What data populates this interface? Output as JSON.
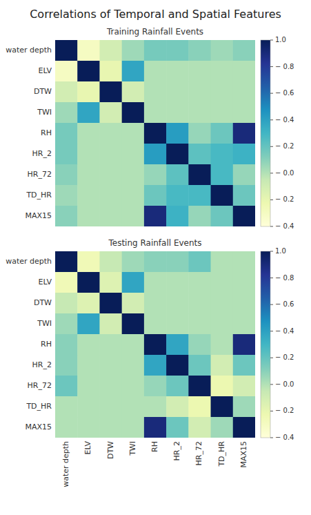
{
  "title": "Correlations of Temporal and Spatial Features",
  "chart_data": [
    {
      "type": "heatmap",
      "title": "Training Rainfall Events",
      "categories": [
        "water depth",
        "ELV",
        "DTW",
        "TWI",
        "RH",
        "HR_2",
        "HR_72",
        "TD_HR",
        "MAX15"
      ],
      "tick_labels": "y",
      "color": "YlGnBu",
      "values": [
        [
          1.0,
          -0.3,
          -0.1,
          0.05,
          0.15,
          0.15,
          0.1,
          0.05,
          0.1
        ],
        [
          -0.3,
          1.0,
          -0.2,
          0.38,
          0.0,
          0.0,
          0.0,
          0.0,
          0.0
        ],
        [
          -0.1,
          -0.2,
          1.0,
          -0.1,
          0.0,
          0.0,
          0.0,
          0.0,
          0.0
        ],
        [
          0.05,
          0.38,
          -0.1,
          1.0,
          0.0,
          0.0,
          0.0,
          0.0,
          0.0
        ],
        [
          0.15,
          0.0,
          0.0,
          0.0,
          1.0,
          0.42,
          0.07,
          0.18,
          0.9
        ],
        [
          0.15,
          0.0,
          0.0,
          0.0,
          0.42,
          1.0,
          0.22,
          0.28,
          0.32
        ],
        [
          0.1,
          0.0,
          0.0,
          0.0,
          0.07,
          0.22,
          1.0,
          0.28,
          0.07
        ],
        [
          0.05,
          0.0,
          0.0,
          0.0,
          0.18,
          0.28,
          0.28,
          1.0,
          0.18
        ],
        [
          0.1,
          0.0,
          0.0,
          0.0,
          0.9,
          0.32,
          0.07,
          0.18,
          1.0
        ]
      ],
      "color_range": [
        -0.4,
        1.0
      ],
      "color_ticks": [
        {
          "value": 1.0,
          "label": "1.0"
        },
        {
          "value": 0.8,
          "label": "− 0.8"
        },
        {
          "value": 0.6,
          "label": "− 0.6"
        },
        {
          "value": 0.4,
          "label": "− 0.4"
        },
        {
          "value": 0.2,
          "label": "− 0.2"
        },
        {
          "value": 0.0,
          "label": "− 0.0"
        },
        {
          "value": -0.2,
          "label": "− 0.2"
        },
        {
          "value": -0.4,
          "label": "− 0.4"
        }
      ]
    },
    {
      "type": "heatmap",
      "title": "Testing Rainfall Events",
      "categories": [
        "water depth",
        "ELV",
        "DTW",
        "TWI",
        "RH",
        "HR_2",
        "HR_72",
        "TD_HR",
        "MAX15"
      ],
      "color": "YlGnBu",
      "values": [
        [
          1.0,
          -0.25,
          -0.05,
          0.05,
          0.1,
          0.1,
          0.18,
          0.0,
          0.0
        ],
        [
          -0.25,
          1.0,
          -0.15,
          0.38,
          0.0,
          0.0,
          0.0,
          0.0,
          0.0
        ],
        [
          -0.05,
          -0.15,
          1.0,
          -0.1,
          0.0,
          0.0,
          0.0,
          0.0,
          0.0
        ],
        [
          0.05,
          0.38,
          -0.1,
          1.0,
          0.0,
          0.0,
          0.0,
          0.0,
          0.0
        ],
        [
          0.1,
          0.0,
          0.0,
          0.0,
          1.0,
          0.38,
          0.07,
          0.0,
          0.9
        ],
        [
          0.1,
          0.0,
          0.0,
          0.0,
          0.38,
          1.0,
          0.18,
          -0.1,
          0.18
        ],
        [
          0.18,
          0.0,
          0.0,
          0.0,
          0.07,
          0.18,
          1.0,
          -0.22,
          -0.1
        ],
        [
          0.0,
          0.0,
          0.0,
          0.0,
          0.0,
          -0.1,
          -0.22,
          1.0,
          0.05
        ],
        [
          0.0,
          0.0,
          0.0,
          0.0,
          0.9,
          0.18,
          -0.1,
          0.05,
          1.0
        ]
      ],
      "color_range": [
        -0.4,
        1.0
      ],
      "color_ticks": [
        {
          "value": 1.0,
          "label": "1.0"
        },
        {
          "value": 0.8,
          "label": "− 0.8"
        },
        {
          "value": 0.6,
          "label": "− 0.6"
        },
        {
          "value": 0.4,
          "label": "− 0.4"
        },
        {
          "value": 0.2,
          "label": "− 0.2"
        },
        {
          "value": 0.0,
          "label": "− 0.0"
        },
        {
          "value": -0.2,
          "label": "− 0.2"
        },
        {
          "value": -0.4,
          "label": "− 0.4"
        }
      ]
    }
  ]
}
